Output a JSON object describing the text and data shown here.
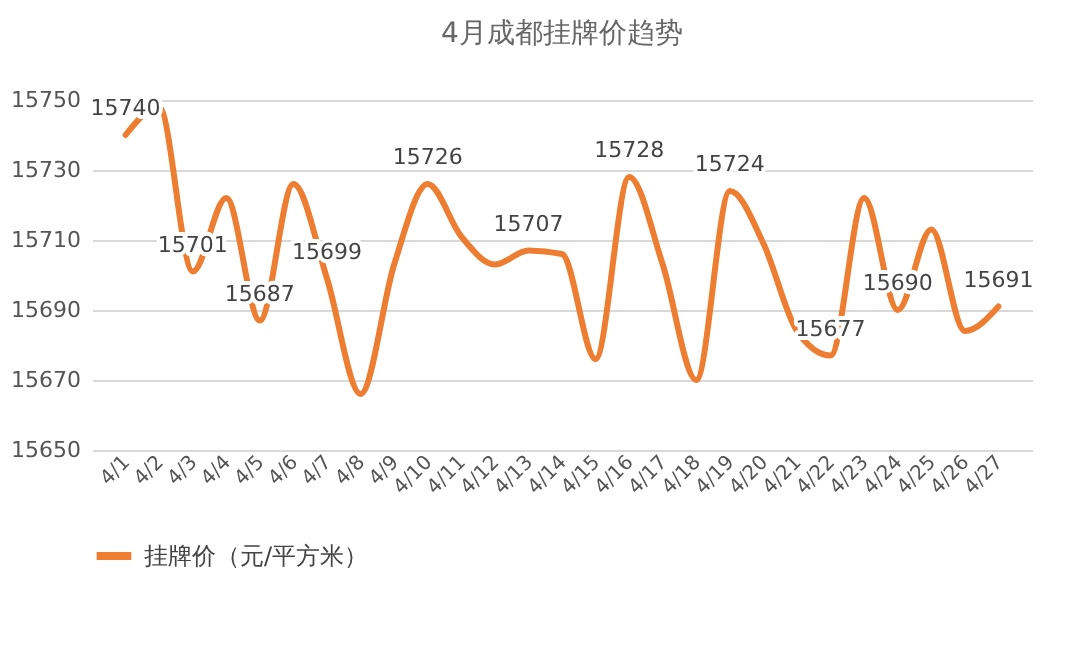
{
  "chart_data": {
    "type": "line",
    "title": "4月成都挂牌价趋势",
    "categories": [
      "4/1",
      "4/2",
      "4/3",
      "4/4",
      "4/5",
      "4/6",
      "4/7",
      "4/8",
      "4/9",
      "4/10",
      "4/11",
      "4/12",
      "4/13",
      "4/14",
      "4/15",
      "4/16",
      "4/17",
      "4/18",
      "4/19",
      "4/20",
      "4/21",
      "4/22",
      "4/23",
      "4/24",
      "4/25",
      "4/26",
      "4/27"
    ],
    "series": [
      {
        "name": "挂牌价（元/平方米）",
        "color": "#ed7d31",
        "values": [
          15740,
          15748,
          15701,
          15722,
          15687,
          15726,
          15699,
          15666,
          15703,
          15726,
          15711,
          15703,
          15707,
          15706,
          15676,
          15728,
          15703,
          15670,
          15724,
          15709,
          15684,
          15677,
          15722,
          15690,
          15713,
          15684,
          15691
        ],
        "value_labels": [
          "15740",
          null,
          "15701",
          null,
          "15687",
          null,
          "15699",
          null,
          null,
          "15726",
          null,
          null,
          "15707",
          null,
          null,
          "15728",
          null,
          null,
          "15724",
          null,
          null,
          "15677",
          null,
          "15690",
          null,
          null,
          "15691"
        ]
      }
    ],
    "ylim": [
      15650,
      15750
    ],
    "yticks": [
      15650,
      15670,
      15690,
      15710,
      15730,
      15750
    ],
    "grid": "y",
    "legend": "bottom",
    "marker": "none",
    "line_style": "solid"
  }
}
